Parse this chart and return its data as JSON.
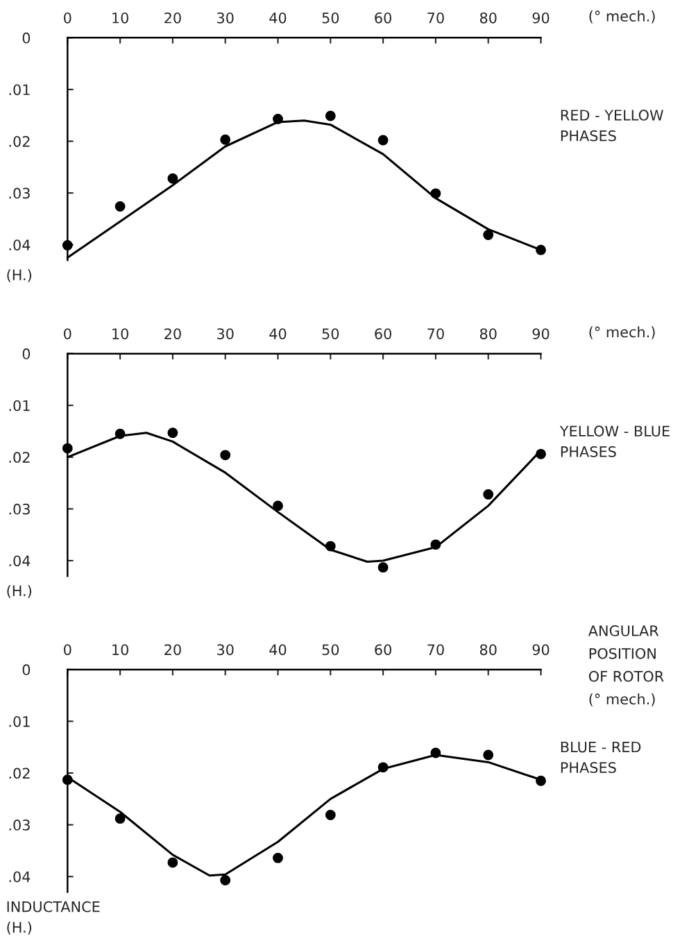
{
  "chart_data": [
    {
      "type": "scatter",
      "xlabel": "(° mech.)",
      "ylabel": "(H.)",
      "annotations": [
        "RED - YELLOW\nPHASES"
      ],
      "xlim": [
        0,
        90
      ],
      "xticks": [
        0,
        10,
        20,
        30,
        40,
        50,
        60,
        70,
        80,
        90
      ],
      "ylim": [
        0.043,
        0
      ],
      "yticks": [
        0,
        {
          "value": 0.01,
          "label": ".01"
        },
        {
          "value": 0.02,
          "label": ".02"
        },
        {
          "value": 0.03,
          "label": ".03"
        },
        {
          "value": 0.04,
          "label": ".04"
        }
      ],
      "grid": false,
      "legend": false,
      "series": [
        {
          "marker": "circle",
          "color": "#000000",
          "x": [
            0,
            10,
            20,
            30,
            40,
            50,
            60,
            70,
            80,
            90
          ],
          "values": [
            0.0401,
            0.0326,
            0.0272,
            0.0197,
            0.0157,
            0.0151,
            0.0198,
            0.0301,
            0.0381,
            0.041
          ]
        },
        {
          "type": "line",
          "color": "#000000",
          "x": [
            0,
            10,
            20,
            30,
            40,
            45,
            50,
            60,
            70,
            80,
            90
          ],
          "values": [
            0.0425,
            0.0355,
            0.0285,
            0.021,
            0.0163,
            0.016,
            0.0168,
            0.0225,
            0.031,
            0.037,
            0.041
          ]
        }
      ]
    },
    {
      "type": "scatter",
      "xlabel": "(° mech.)",
      "ylabel": "(H.)",
      "annotations": [
        "YELLOW - BLUE\nPHASES"
      ],
      "xlim": [
        0,
        90
      ],
      "xticks": [
        0,
        10,
        20,
        30,
        40,
        50,
        60,
        70,
        80,
        90
      ],
      "ylim": [
        0.043,
        0
      ],
      "yticks": [
        0,
        {
          "value": 0.01,
          "label": ".01"
        },
        {
          "value": 0.02,
          "label": ".02"
        },
        {
          "value": 0.03,
          "label": ".03"
        },
        {
          "value": 0.04,
          "label": ".04"
        }
      ],
      "grid": false,
      "legend": false,
      "series": [
        {
          "marker": "circle",
          "color": "#000000",
          "x": [
            0,
            10,
            20,
            30,
            40,
            50,
            60,
            70,
            80,
            90
          ],
          "values": [
            0.0183,
            0.0155,
            0.0153,
            0.0196,
            0.0294,
            0.0372,
            0.0413,
            0.0369,
            0.0272,
            0.0194
          ]
        },
        {
          "type": "line",
          "color": "#000000",
          "x": [
            0,
            10,
            15,
            20,
            30,
            40,
            50,
            57,
            60,
            70,
            80,
            90
          ],
          "values": [
            0.02,
            0.0159,
            0.0153,
            0.017,
            0.023,
            0.0306,
            0.0379,
            0.0402,
            0.04,
            0.0374,
            0.0294,
            0.0187
          ]
        }
      ]
    },
    {
      "type": "scatter",
      "xlabel": "ANGULAR\nPOSITION\nOF ROTOR\n(° mech.)",
      "ylabel": "INDUCTANCE\n(H.)",
      "annotations": [
        "BLUE - RED\nPHASES"
      ],
      "xlim": [
        0,
        90
      ],
      "xticks": [
        0,
        10,
        20,
        30,
        40,
        50,
        60,
        70,
        80,
        90
      ],
      "ylim": [
        0.043,
        0
      ],
      "yticks": [
        0,
        {
          "value": 0.01,
          "label": ".01"
        },
        {
          "value": 0.02,
          "label": ".02"
        },
        {
          "value": 0.03,
          "label": ".03"
        },
        {
          "value": 0.04,
          "label": ".04"
        }
      ],
      "grid": false,
      "legend": false,
      "series": [
        {
          "marker": "circle",
          "color": "#000000",
          "x": [
            0,
            10,
            20,
            30,
            40,
            50,
            60,
            70,
            80,
            90
          ],
          "values": [
            0.0213,
            0.0288,
            0.0373,
            0.0407,
            0.0364,
            0.0281,
            0.0189,
            0.0161,
            0.0165,
            0.0215
          ]
        },
        {
          "type": "line",
          "color": "#000000",
          "x": [
            0,
            10,
            20,
            27,
            30,
            40,
            50,
            60,
            70,
            80,
            90
          ],
          "values": [
            0.0208,
            0.0275,
            0.0358,
            0.0398,
            0.0396,
            0.0333,
            0.025,
            0.0192,
            0.0165,
            0.0179,
            0.0213
          ]
        }
      ]
    }
  ]
}
